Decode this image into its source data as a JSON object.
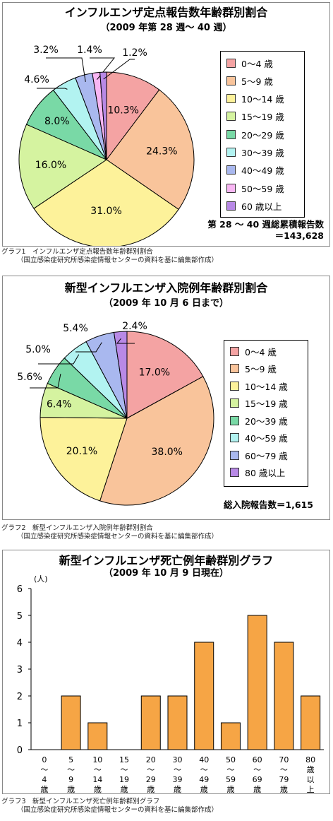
{
  "chart_data": [
    {
      "type": "pie",
      "title": "インフルエンザ定点報告数年齢群別割合",
      "subtitle": "（2009 年第 28 週～ 40 週）",
      "categories": [
        "0～4 歳",
        "5～9 歳",
        "10～14 歳",
        "15～19 歳",
        "20～29 歳",
        "30～39 歳",
        "40～49 歳",
        "50～59 歳",
        "60 歳以上"
      ],
      "values": [
        10.3,
        24.3,
        31.0,
        16.0,
        8.0,
        4.6,
        3.2,
        1.4,
        1.2
      ],
      "value_labels": [
        "10.3%",
        "24.3%",
        "31.0%",
        "16.0%",
        "8.0%",
        "4.6%",
        "3.2%",
        "1.4%",
        "1.2%"
      ],
      "colors": [
        "#f4a3a3",
        "#f9c49b",
        "#fdf29a",
        "#d5f3a0",
        "#79d9a6",
        "#b2f3f1",
        "#a9b8ef",
        "#f8b6f3",
        "#b889e6"
      ],
      "note_lines": [
        "第 28 ～ 40 週総累積報告数",
        "＝143,628"
      ],
      "legend_position": "right",
      "caption": [
        "グラフ1　インフルエンザ定点報告数年齢群別割合",
        "（国立感染症研究所感染症情報センターの資料を基に編集部作成）"
      ]
    },
    {
      "type": "pie",
      "title": "新型インフルエンザ入院例年齢群別割合",
      "subtitle": "（2009 年 10 月 6 日まで）",
      "categories": [
        "0～4 歳",
        "5～9 歳",
        "10～14 歳",
        "15～19 歳",
        "20～39 歳",
        "40～59 歳",
        "60～79 歳",
        "80 歳以上"
      ],
      "values": [
        17.0,
        38.0,
        20.1,
        6.4,
        5.6,
        5.0,
        5.4,
        2.4
      ],
      "value_labels": [
        "17.0%",
        "38.0%",
        "20.1%",
        "6.4%",
        "5.6%",
        "5.0%",
        "5.4%",
        "2.4%"
      ],
      "colors": [
        "#f4a3a3",
        "#f9c49b",
        "#fdf29a",
        "#d5f3a0",
        "#79d9a6",
        "#b2f3f1",
        "#a9b8ef",
        "#b889e6"
      ],
      "note_lines": [
        "総入院報告数＝1,615"
      ],
      "legend_position": "right",
      "caption": [
        "グラフ2　新型インフルエンザ入院例年齢群別割合",
        "（国立感染症研究所感染症情報センターの資料を基に編集部作成）"
      ]
    },
    {
      "type": "bar",
      "title": "新型インフルエンザ死亡例年齢群別グラフ",
      "subtitle": "（2009 年 10 月 9 日現在）",
      "unit_label": "(人)",
      "categories": [
        "0～4歳",
        "5～9歳",
        "10～14歳",
        "15～19歳",
        "20～29歳",
        "30～39歳",
        "40～49歳",
        "50～59歳",
        "60～69歳",
        "70～79歳",
        "80歳以上"
      ],
      "category_lines": [
        [
          "0",
          "～",
          "4",
          "歳"
        ],
        [
          "5",
          "～",
          "9",
          "歳"
        ],
        [
          "10",
          "～",
          "14",
          "歳"
        ],
        [
          "15",
          "～",
          "19",
          "歳"
        ],
        [
          "20",
          "～",
          "29",
          "歳"
        ],
        [
          "30",
          "～",
          "39",
          "歳"
        ],
        [
          "40",
          "～",
          "49",
          "歳"
        ],
        [
          "50",
          "～",
          "59",
          "歳"
        ],
        [
          "60",
          "～",
          "69",
          "歳"
        ],
        [
          "70",
          "～",
          "79",
          "歳"
        ],
        [
          "80",
          "歳",
          "以",
          "上"
        ]
      ],
      "values": [
        0,
        2,
        1,
        0,
        2,
        2,
        4,
        1,
        5,
        4,
        2
      ],
      "ylim": [
        0,
        6
      ],
      "yticks": [
        "0",
        "1",
        "2",
        "3",
        "4",
        "5",
        "6"
      ],
      "bar_color": "#f6a545",
      "grid": false,
      "caption": [
        "グラフ3　新型インフルエンザ死亡例年齢群別グラフ",
        "（国立感染症研究所感染症情報センターの資料を基に編集部作成）"
      ]
    }
  ]
}
